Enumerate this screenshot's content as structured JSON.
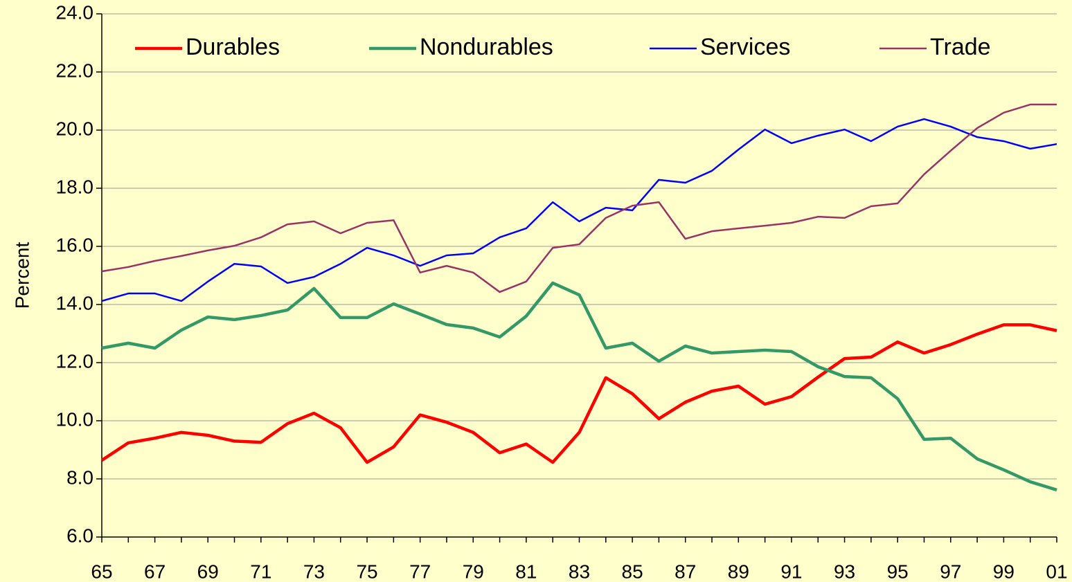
{
  "chart_data": {
    "type": "line",
    "ylabel": "Percent",
    "categories": [
      "65",
      null,
      "67",
      null,
      "69",
      null,
      "71",
      null,
      "73",
      null,
      "75",
      null,
      "77",
      null,
      "79",
      null,
      "81",
      null,
      "83",
      null,
      "85",
      null,
      "87",
      null,
      "89",
      null,
      "91",
      null,
      "93",
      null,
      "95",
      null,
      "97",
      null,
      "99",
      null,
      "01"
    ],
    "series": [
      {
        "name": "Durables",
        "color": "#ff0000",
        "values": [
          8.64,
          9.24,
          9.4,
          9.6,
          9.5,
          9.3,
          9.26,
          9.9,
          10.26,
          9.76,
          8.57,
          9.1,
          10.2,
          9.95,
          9.6,
          8.9,
          9.2,
          8.57,
          9.6,
          11.48,
          10.93,
          10.07,
          10.64,
          11.02,
          11.19,
          10.57,
          10.83,
          11.5,
          12.14,
          12.19,
          12.71,
          12.33,
          12.62,
          12.98,
          13.3,
          13.3,
          13.1
        ]
      },
      {
        "name": "Nondurables",
        "color": "#339966",
        "values": [
          12.5,
          12.67,
          12.5,
          13.12,
          13.57,
          13.48,
          13.62,
          13.81,
          14.55,
          13.55,
          13.55,
          14.02,
          13.67,
          13.31,
          13.19,
          12.88,
          13.6,
          14.74,
          14.33,
          12.5,
          12.67,
          12.05,
          12.57,
          12.33,
          12.38,
          12.43,
          12.38,
          11.86,
          11.52,
          11.48,
          10.76,
          9.36,
          9.4,
          8.69,
          8.31,
          7.9,
          7.62
        ]
      },
      {
        "name": "Services",
        "color": "#0000ff",
        "values": [
          14.12,
          14.38,
          14.38,
          14.12,
          14.79,
          15.4,
          15.31,
          14.74,
          14.95,
          15.4,
          15.95,
          15.69,
          15.33,
          15.69,
          15.76,
          16.31,
          16.62,
          17.52,
          16.86,
          17.33,
          17.24,
          18.29,
          18.19,
          18.6,
          19.33,
          20.02,
          19.55,
          19.81,
          20.02,
          19.62,
          20.12,
          20.38,
          20.12,
          19.76,
          19.62,
          19.36,
          19.52
        ]
      },
      {
        "name": "Trade",
        "color": "#993366",
        "values": [
          15.14,
          15.29,
          15.5,
          15.67,
          15.86,
          16.02,
          16.31,
          16.76,
          16.86,
          16.45,
          16.81,
          16.9,
          15.1,
          15.33,
          15.1,
          14.43,
          14.79,
          15.95,
          16.07,
          16.98,
          17.4,
          17.52,
          16.26,
          16.52,
          16.62,
          16.71,
          16.81,
          17.02,
          16.98,
          17.38,
          17.48,
          18.48,
          19.29,
          20.07,
          20.6,
          20.88,
          20.88
        ]
      }
    ],
    "ylim": [
      6,
      24
    ],
    "yticks": [
      {
        "value": 6,
        "label": "6.0"
      },
      {
        "value": 8,
        "label": "8.0"
      },
      {
        "value": 10,
        "label": "10.0"
      },
      {
        "value": 12,
        "label": "12.0"
      },
      {
        "value": 14,
        "label": "14.0"
      },
      {
        "value": 16,
        "label": "16.0"
      },
      {
        "value": 18,
        "label": "18.0"
      },
      {
        "value": 20,
        "label": "20.0"
      },
      {
        "value": 22,
        "label": "22.0"
      },
      {
        "value": 24,
        "label": "24.0"
      }
    ],
    "grid": true,
    "legend": "top"
  }
}
